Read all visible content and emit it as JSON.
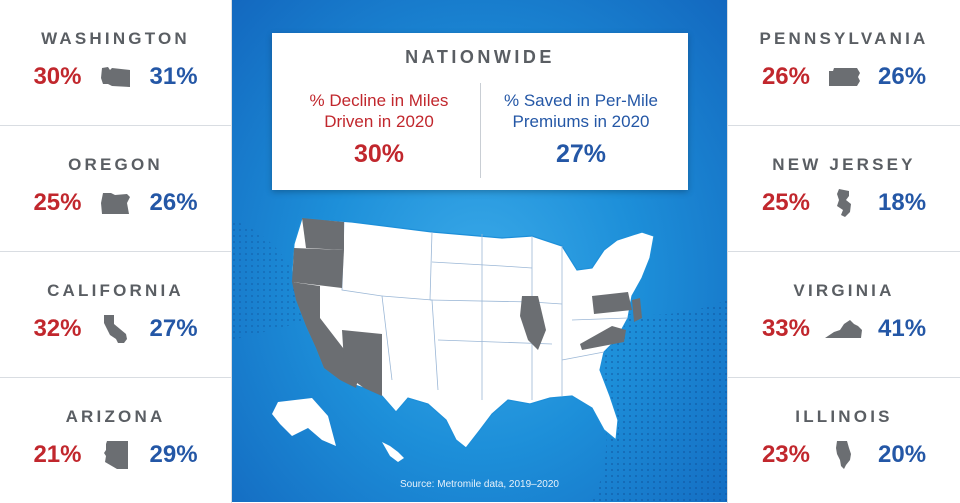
{
  "left_states": [
    {
      "name": "WASHINGTON",
      "decline": "30%",
      "saved": "31%",
      "icon": "washington-state-icon"
    },
    {
      "name": "OREGON",
      "decline": "25%",
      "saved": "26%",
      "icon": "oregon-state-icon"
    },
    {
      "name": "CALIFORNIA",
      "decline": "32%",
      "saved": "27%",
      "icon": "california-state-icon"
    },
    {
      "name": "ARIZONA",
      "decline": "21%",
      "saved": "29%",
      "icon": "arizona-state-icon"
    }
  ],
  "right_states": [
    {
      "name": "PENNSYLVANIA",
      "decline": "26%",
      "saved": "26%",
      "icon": "pennsylvania-state-icon"
    },
    {
      "name": "NEW JERSEY",
      "decline": "25%",
      "saved": "18%",
      "icon": "new-jersey-state-icon"
    },
    {
      "name": "VIRGINIA",
      "decline": "33%",
      "saved": "41%",
      "icon": "virginia-state-icon"
    },
    {
      "name": "ILLINOIS",
      "decline": "23%",
      "saved": "20%",
      "icon": "illinois-state-icon"
    }
  ],
  "nationwide": {
    "title": "NATIONWIDE",
    "decline_label": "% Decline in Miles Driven in 2020",
    "decline_value": "30%",
    "saved_label": "% Saved in Per-Mile Premiums in 2020",
    "saved_value": "27%"
  },
  "source": "Source: Metromile data, 2019–2020",
  "colors": {
    "decline": "#c1272d",
    "saved": "#2457a6",
    "state_fill": "#6b6e72",
    "map_fill": "#ffffff",
    "background": "#1d8fd9"
  }
}
